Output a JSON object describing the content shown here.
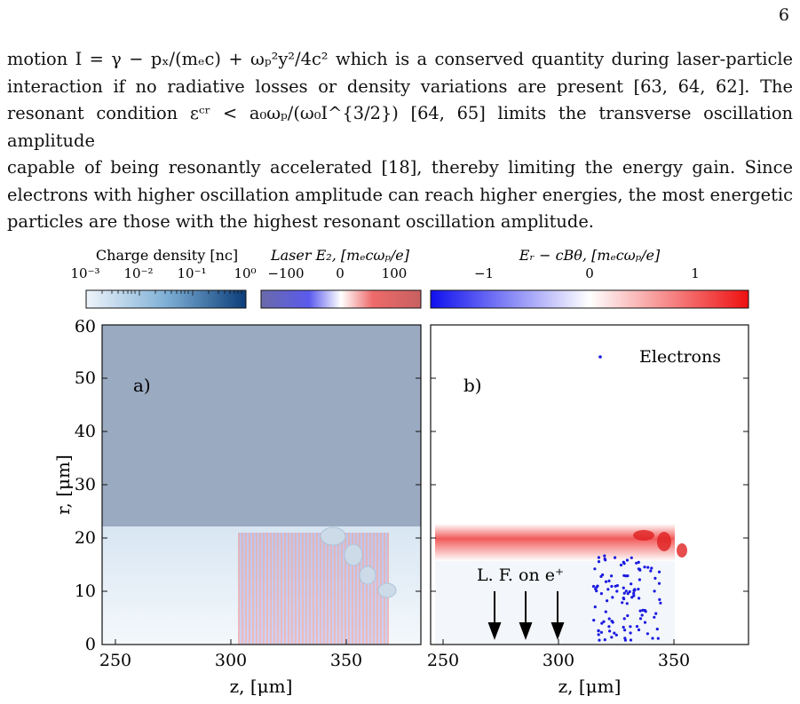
{
  "page_number": "6",
  "paragraph": {
    "lines": [
      "motion I = γ − pₓ/(mₑc) + ωₚ²y²/4c² which is a conserved quantity during laser-particle",
      "interaction if no radiative losses or density variations are present [63, 64, 62]. The",
      "resonant condition εᶜʳ < a₀ωₚ/(ω₀I^{3/2}) [64, 65] limits the transverse oscillation amplitude",
      "capable of being resonantly accelerated [18], thereby limiting the energy gain. Since",
      "electrons with higher oscillation amplitude can reach higher energies, the most energetic",
      "particles are those with the highest resonant oscillation amplitude."
    ]
  },
  "figure": {
    "colorbars": [
      {
        "label": "Charge density [nᴄ]",
        "ticks": [
          "10⁻³",
          "10⁻²",
          "10⁻¹",
          "10⁰"
        ],
        "colors": [
          "#eef4fa",
          "#0b3d7a"
        ]
      },
      {
        "label": "Laser E₂, [mₑcωₚ/e]",
        "ticks": [
          "−100",
          "0",
          "100"
        ],
        "colors": [
          "#6a6aaa",
          "#ffffff",
          "#d05a5a"
        ]
      },
      {
        "label": "Eᵣ − cBθ, [mₑcωₚ/e]",
        "ticks": [
          "−1",
          "0",
          "1"
        ],
        "colors": [
          "#1010ee",
          "#ffffff",
          "#ee1010"
        ]
      }
    ],
    "panel_a_label": "a)",
    "panel_b_label": "b)",
    "ylabel": "r, [μm]",
    "xlabel": "z, [μm]",
    "yticks": [
      "0",
      "10",
      "20",
      "30",
      "40",
      "50",
      "60"
    ],
    "xticks": [
      "250",
      "300",
      "350"
    ],
    "legend_label": "Electrons",
    "annotation": "L. F. on e⁺",
    "colors": {
      "background_fill": "#9aaac1",
      "electrons": "#1a1ae0"
    }
  }
}
